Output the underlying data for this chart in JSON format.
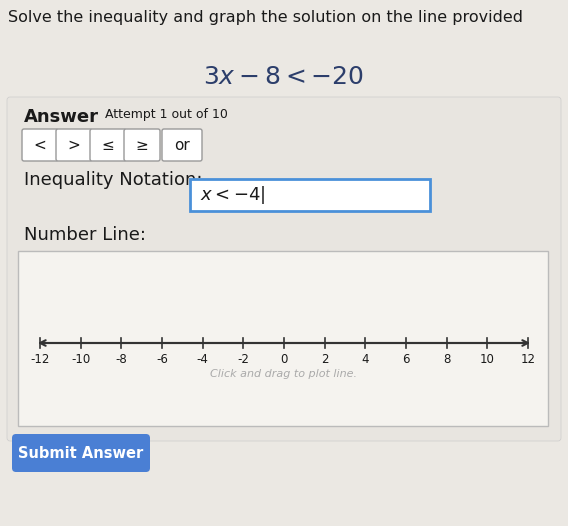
{
  "title": "Solve the inequality and graph the solution on the line provided",
  "equation_parts": [
    "3",
    "x",
    " − 8 < −20"
  ],
  "answer_label": "Answer",
  "attempt_label": "Attempt 1 out of 10",
  "buttons": [
    "<",
    ">",
    "≤",
    "≥",
    "or"
  ],
  "inequality_label": "Inequality Notation:",
  "inequality_value": "x < −4",
  "number_line_label": "Number Line:",
  "number_line_hint": "Click and drag to plot line.",
  "submit_button": "Submit Answer",
  "bg_color": "#ebe8e3",
  "answer_box_bg": "#e8e5e0",
  "number_line_box_bg": "#f5f3ef",
  "number_line_ticks": [
    -12,
    -10,
    -8,
    -6,
    -4,
    -2,
    0,
    2,
    4,
    6,
    8,
    10,
    12
  ],
  "equation_color": "#2c3e6b",
  "text_color": "#1a1a1a",
  "hint_color": "#aaaaaa",
  "button_border_color": "#999999",
  "inequality_box_border": "#4a90d9",
  "submit_bg": "#4a7fd4",
  "submit_text_color": "#ffffff",
  "title_fontsize": 11.5,
  "equation_fontsize": 18,
  "answer_fontsize": 13,
  "attempt_fontsize": 9,
  "button_fontsize": 11,
  "label_fontsize": 13,
  "ineq_value_fontsize": 13,
  "number_line_fontsize": 8.5,
  "submit_fontsize": 10.5
}
